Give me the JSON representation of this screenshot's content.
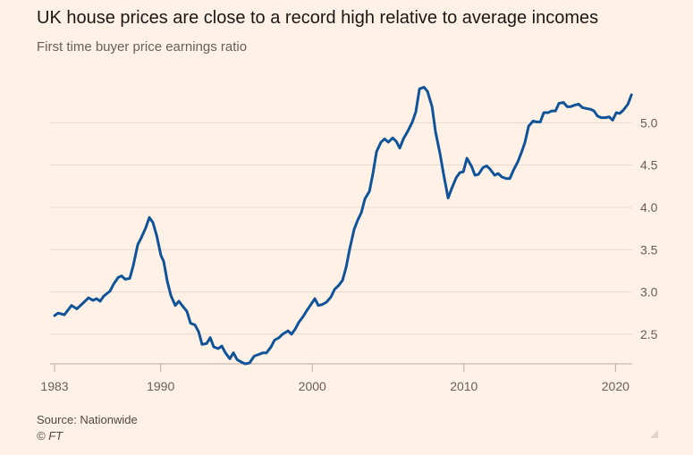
{
  "chart_data": {
    "type": "line",
    "title": "UK house prices are close to a record high relative to average incomes",
    "subtitle": "First time buyer price earnings ratio",
    "source": "Source: Nationwide",
    "credit": "© FT",
    "x": [
      1983.0,
      1983.24,
      1983.65,
      1984.12,
      1984.47,
      1984.89,
      1985.24,
      1985.54,
      1985.77,
      1986.01,
      1986.24,
      1986.66,
      1986.89,
      1987.19,
      1987.42,
      1987.66,
      1987.96,
      1988.19,
      1988.49,
      1988.72,
      1989.02,
      1989.25,
      1989.49,
      1989.73,
      1990.02,
      1990.2,
      1990.43,
      1990.67,
      1990.96,
      1991.2,
      1991.5,
      1991.73,
      1991.97,
      1992.26,
      1992.5,
      1992.73,
      1993.03,
      1993.27,
      1993.5,
      1993.8,
      1994.03,
      1994.27,
      1994.56,
      1994.8,
      1995.04,
      1995.33,
      1995.57,
      1995.86,
      1996.16,
      1996.45,
      1996.75,
      1996.98,
      1997.28,
      1997.51,
      1997.81,
      1998.04,
      1998.4,
      1998.63,
      1998.87,
      1999.11,
      1999.4,
      1999.64,
      1999.87,
      2000.17,
      2000.4,
      2000.64,
      2000.94,
      2001.23,
      2001.47,
      2001.76,
      2002.0,
      2002.23,
      2002.47,
      2002.76,
      2003.0,
      2003.24,
      2003.47,
      2003.77,
      2004.0,
      2004.24,
      2004.53,
      2004.77,
      2005.01,
      2005.3,
      2005.54,
      2005.77,
      2006.01,
      2006.3,
      2006.6,
      2006.83,
      2007.07,
      2007.37,
      2007.6,
      2007.9,
      2008.13,
      2008.43,
      2008.66,
      2008.96,
      2009.19,
      2009.49,
      2009.73,
      2009.96,
      2010.2,
      2010.49,
      2010.73,
      2010.96,
      2011.26,
      2011.5,
      2011.73,
      2012.03,
      2012.26,
      2012.5,
      2012.79,
      2013.03,
      2013.27,
      2013.56,
      2013.8,
      2014.03,
      2014.27,
      2014.56,
      2014.8,
      2015.04,
      2015.27,
      2015.57,
      2015.8,
      2016.04,
      2016.27,
      2016.57,
      2016.81,
      2017.04,
      2017.34,
      2017.57,
      2017.81,
      2018.04,
      2018.34,
      2018.58,
      2018.81,
      2019.05,
      2019.34,
      2019.58,
      2019.81,
      2020.05,
      2020.28,
      2020.52,
      2020.82,
      2021.05
    ],
    "series": [
      {
        "color": "#0f5499",
        "values": [
          2.72,
          2.75,
          2.73,
          2.84,
          2.8,
          2.87,
          2.93,
          2.9,
          2.92,
          2.89,
          2.95,
          3.01,
          3.09,
          3.17,
          3.19,
          3.15,
          3.16,
          3.31,
          3.56,
          3.64,
          3.76,
          3.88,
          3.82,
          3.67,
          3.43,
          3.36,
          3.13,
          2.96,
          2.84,
          2.89,
          2.82,
          2.77,
          2.63,
          2.61,
          2.53,
          2.38,
          2.39,
          2.46,
          2.35,
          2.33,
          2.36,
          2.28,
          2.21,
          2.28,
          2.2,
          2.17,
          2.15,
          2.16,
          2.24,
          2.26,
          2.28,
          2.28,
          2.35,
          2.43,
          2.46,
          2.5,
          2.54,
          2.5,
          2.56,
          2.64,
          2.71,
          2.78,
          2.84,
          2.92,
          2.84,
          2.85,
          2.88,
          2.94,
          3.03,
          3.08,
          3.14,
          3.29,
          3.51,
          3.74,
          3.85,
          3.94,
          4.1,
          4.19,
          4.4,
          4.66,
          4.77,
          4.81,
          4.77,
          4.82,
          4.78,
          4.7,
          4.81,
          4.9,
          5.01,
          5.13,
          5.4,
          5.42,
          5.37,
          5.19,
          4.89,
          4.63,
          4.39,
          4.11,
          4.22,
          4.35,
          4.41,
          4.42,
          4.58,
          4.49,
          4.38,
          4.39,
          4.47,
          4.49,
          4.45,
          4.38,
          4.4,
          4.36,
          4.34,
          4.34,
          4.44,
          4.54,
          4.65,
          4.77,
          4.96,
          5.02,
          5.01,
          5.01,
          5.12,
          5.12,
          5.14,
          5.14,
          5.23,
          5.24,
          5.19,
          5.19,
          5.21,
          5.22,
          5.18,
          5.17,
          5.16,
          5.14,
          5.08,
          5.06,
          5.06,
          5.07,
          5.03,
          5.12,
          5.11,
          5.15,
          5.22,
          5.33
        ]
      }
    ],
    "xlim": [
      1983,
      2021.1
    ],
    "xticks": [
      1983,
      1990,
      2000,
      2010,
      2020
    ],
    "ylim": [
      2.15,
      5.5
    ],
    "yticks": [
      2.5,
      {
        "value": 3,
        "label": "3.0"
      },
      3.5,
      {
        "value": 4,
        "label": "4.0"
      },
      4.5,
      {
        "value": 5,
        "label": "5.0"
      }
    ],
    "grid": true
  }
}
